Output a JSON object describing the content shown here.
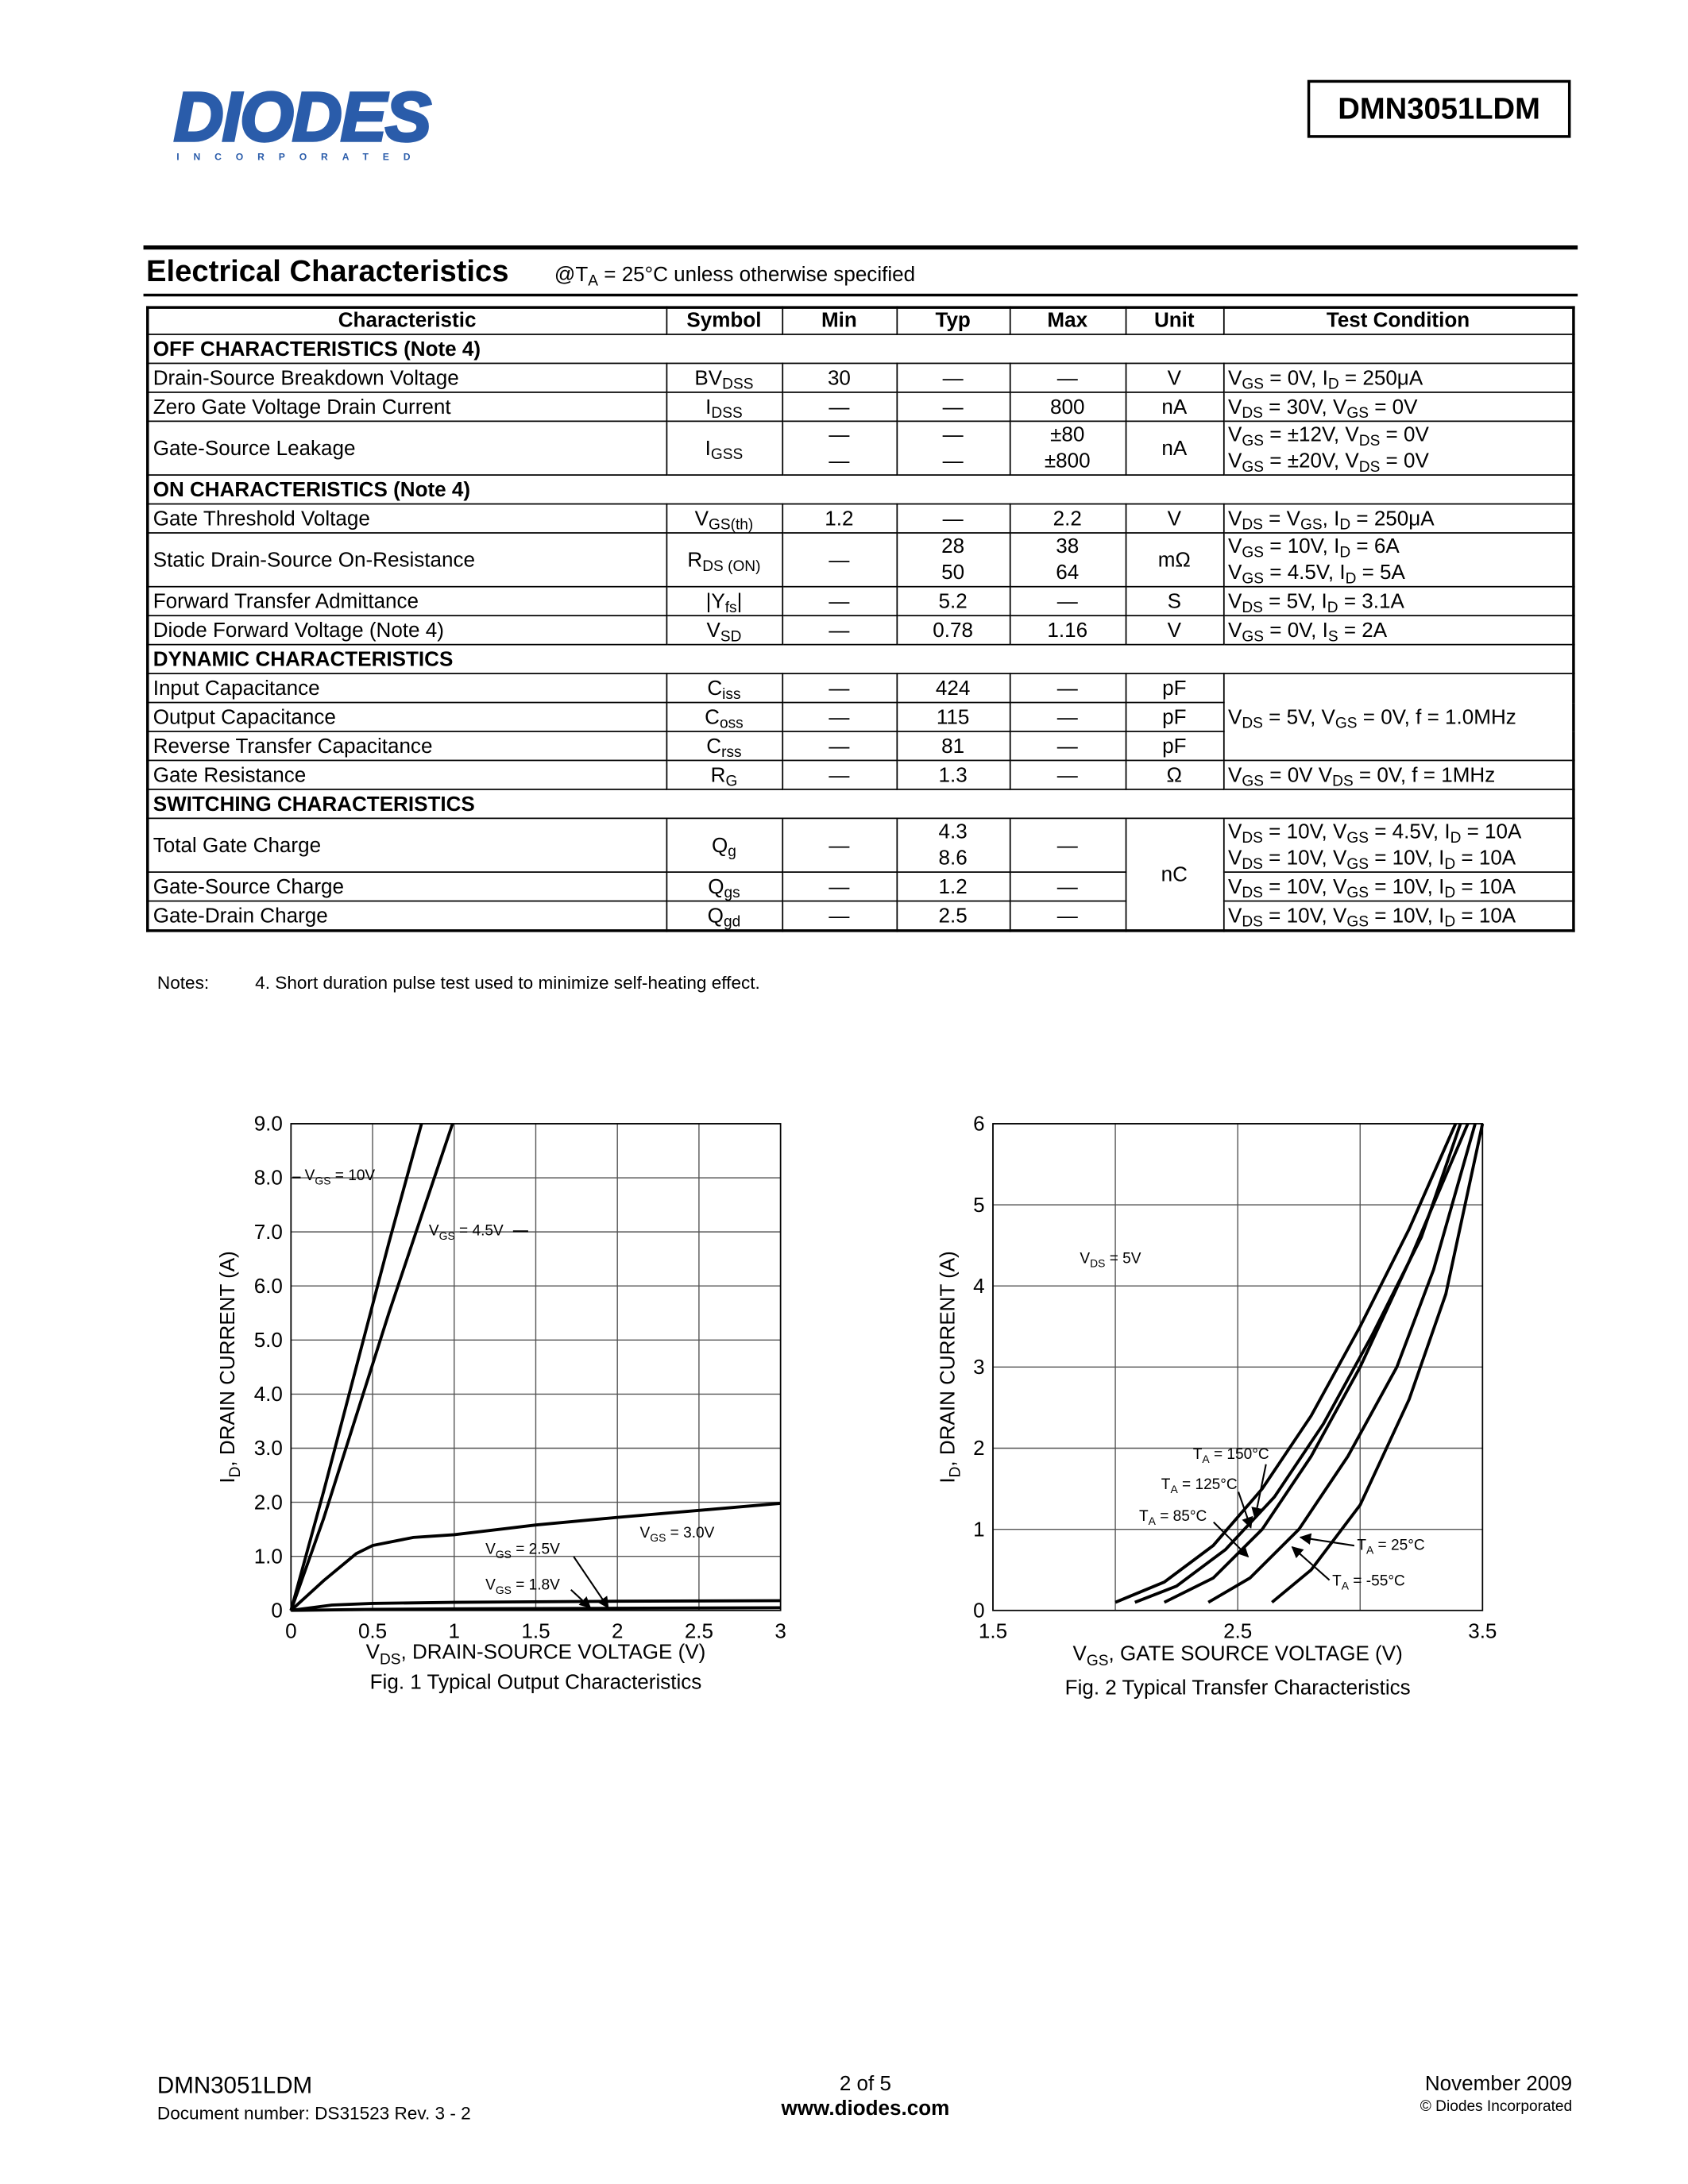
{
  "header": {
    "logo": "DIODES",
    "logo_sub": "INCORPORATED",
    "part_number": "DMN3051LDM"
  },
  "section": {
    "title": "Electrical Characteristics",
    "condition": [
      "@T",
      {
        "sub": "A"
      },
      " = 25°C unless otherwise specified"
    ]
  },
  "table": {
    "header": [
      "Characteristic",
      "Symbol",
      "Min",
      "Typ",
      "Max",
      "Unit",
      "Test Condition"
    ],
    "rows": [
      {
        "section": "OFF CHARACTERISTICS (Note 4)"
      },
      [
        "Drain-Source Breakdown Voltage",
        [
          "BV",
          {
            "sub": "DSS"
          }
        ],
        "30",
        "—",
        "—",
        "V",
        [
          "V",
          {
            "sub": "GS"
          },
          " = 0V, I",
          {
            "sub": "D"
          },
          " = 250μA"
        ]
      ],
      [
        "Zero Gate Voltage Drain Current",
        [
          "I",
          {
            "sub": "DSS"
          }
        ],
        "—",
        "—",
        "800",
        "nA",
        [
          "V",
          {
            "sub": "DS"
          },
          " = 30V, V",
          {
            "sub": "GS"
          },
          " = 0V"
        ]
      ],
      [
        "Gate-Source Leakage",
        [
          "I",
          {
            "sub": "GSS"
          }
        ],
        {
          "lines": [
            "—",
            "—"
          ]
        },
        {
          "lines": [
            "—",
            "—"
          ]
        },
        {
          "lines": [
            "±80",
            "±800"
          ]
        },
        "nA",
        {
          "lines": [
            [
              "V",
              {
                "sub": "GS"
              },
              " = ±12V, V",
              {
                "sub": "DS"
              },
              " = 0V"
            ],
            [
              "V",
              {
                "sub": "GS"
              },
              " = ±20V, V",
              {
                "sub": "DS"
              },
              " = 0V"
            ]
          ]
        }
      ],
      {
        "section": "ON CHARACTERISTICS (Note 4)"
      },
      [
        "Gate Threshold Voltage",
        [
          "V",
          {
            "sub": "GS(th)"
          }
        ],
        "1.2",
        "—",
        "2.2",
        "V",
        [
          "V",
          {
            "sub": "DS"
          },
          " = V",
          {
            "sub": "GS"
          },
          ", I",
          {
            "sub": "D"
          },
          " = 250μA"
        ]
      ],
      [
        "Static Drain-Source On-Resistance",
        [
          "R",
          {
            "sub": "DS (ON)"
          }
        ],
        "—",
        {
          "lines": [
            "28",
            "50"
          ]
        },
        {
          "lines": [
            "38",
            "64"
          ]
        },
        "mΩ",
        {
          "lines": [
            [
              "V",
              {
                "sub": "GS"
              },
              " = 10V, I",
              {
                "sub": "D"
              },
              " = 6A"
            ],
            [
              "V",
              {
                "sub": "GS"
              },
              " = 4.5V, I",
              {
                "sub": "D"
              },
              " = 5A"
            ]
          ]
        }
      ],
      [
        "Forward Transfer Admittance",
        [
          "|Y",
          {
            "sub": "fs"
          },
          "|"
        ],
        "—",
        "5.2",
        "—",
        "S",
        [
          "V",
          {
            "sub": "DS"
          },
          " = 5V, I",
          {
            "sub": "D"
          },
          " = 3.1A"
        ]
      ],
      [
        "Diode Forward Voltage (Note 4)",
        [
          "V",
          {
            "sub": "SD"
          }
        ],
        "—",
        "0.78",
        "1.16",
        "V",
        [
          "V",
          {
            "sub": "GS"
          },
          " = 0V, I",
          {
            "sub": "S"
          },
          " = 2A"
        ]
      ],
      {
        "section": "DYNAMIC CHARACTERISTICS"
      },
      [
        "Input Capacitance",
        [
          "C",
          {
            "sub": "iss"
          }
        ],
        "—",
        "424",
        "—",
        "pF",
        [
          "V",
          {
            "sub": "DS"
          },
          " = 5V, V",
          {
            "sub": "GS"
          },
          " = 0V, f = 1.0MHz"
        ]
      ],
      [
        "Output Capacitance",
        [
          "C",
          {
            "sub": "oss"
          }
        ],
        "—",
        "115",
        "—",
        "pF"
      ],
      [
        "Reverse Transfer Capacitance",
        [
          "C",
          {
            "sub": "rss"
          }
        ],
        "—",
        "81",
        "—",
        "pF"
      ],
      [
        "Gate Resistance",
        [
          "R",
          {
            "sub": "G"
          }
        ],
        "—",
        "1.3",
        "—",
        "Ω",
        [
          "V",
          {
            "sub": "GS"
          },
          " = 0V V",
          {
            "sub": "DS"
          },
          " = 0V, f = 1MHz"
        ]
      ],
      {
        "section": "SWITCHING CHARACTERISTICS"
      },
      [
        "Total Gate Charge",
        [
          "Q",
          {
            "sub": "g"
          }
        ],
        "—",
        {
          "lines": [
            "4.3",
            "8.6"
          ]
        },
        "—",
        "nC",
        {
          "lines": [
            [
              "V",
              {
                "sub": "DS"
              },
              " = 10V, V",
              {
                "sub": "GS"
              },
              " = 4.5V, I",
              {
                "sub": "D"
              },
              " = 10A"
            ],
            [
              "V",
              {
                "sub": "DS"
              },
              " = 10V, V",
              {
                "sub": "GS"
              },
              " = 10V, I",
              {
                "sub": "D"
              },
              " = 10A"
            ]
          ]
        }
      ],
      [
        "Gate-Source Charge",
        [
          "Q",
          {
            "sub": "gs"
          }
        ],
        "—",
        "1.2",
        "—",
        [
          "V",
          {
            "sub": "DS"
          },
          " = 10V, V",
          {
            "sub": "GS"
          },
          " = 10V, I",
          {
            "sub": "D"
          },
          " = 10A"
        ]
      ],
      [
        "Gate-Drain Charge",
        [
          "Q",
          {
            "sub": "gd"
          }
        ],
        "—",
        "2.5",
        "—",
        [
          "V",
          {
            "sub": "DS"
          },
          " = 10V, V",
          {
            "sub": "GS"
          },
          " = 10V, I",
          {
            "sub": "D"
          },
          " = 10A"
        ]
      ]
    ]
  },
  "notes": {
    "label": "Notes:",
    "text": "4. Short duration pulse test used to minimize self-heating effect."
  },
  "chart_data": [
    {
      "type": "line",
      "caption": "Fig. 1 Typical Output Characteristics",
      "xlabel": [
        "V",
        {
          "sub": "DS"
        },
        ", DRAIN-SOURCE VOLTAGE (V)"
      ],
      "ylabel": [
        "I",
        {
          "sub": "D"
        },
        ", DRAIN CURRENT (A)"
      ],
      "xlim": [
        0,
        3
      ],
      "ylim": [
        0,
        9
      ],
      "xticks": [
        0,
        0.5,
        1,
        1.5,
        2,
        2.5,
        3
      ],
      "yticks": [
        0,
        {
          "value": 1,
          "label": "1.0"
        },
        {
          "value": 2,
          "label": "2.0"
        },
        {
          "value": 3,
          "label": "3.0"
        },
        {
          "value": 4,
          "label": "4.0"
        },
        {
          "value": 5,
          "label": "5.0"
        },
        {
          "value": 6,
          "label": "6.0"
        },
        {
          "value": 7,
          "label": "7.0"
        },
        {
          "value": 8,
          "label": "8.0"
        },
        {
          "value": 9,
          "label": "9.0"
        }
      ],
      "grid": true,
      "series": [
        {
          "name": [
            "V",
            {
              "sub": "GS"
            },
            " = 10V"
          ],
          "color": "#000000",
          "x": [
            0,
            0.2,
            0.4,
            0.6,
            0.8
          ],
          "values": [
            0,
            2.2,
            4.5,
            6.8,
            9
          ]
        },
        {
          "name": [
            "V",
            {
              "sub": "GS"
            },
            " = 4.5V"
          ],
          "color": "#000000",
          "x": [
            0,
            0.2,
            0.4,
            0.6,
            0.8,
            0.99
          ],
          "values": [
            0,
            1.7,
            3.6,
            5.5,
            7.3,
            9
          ]
        },
        {
          "name": [
            "V",
            {
              "sub": "GS"
            },
            " = 3.0V"
          ],
          "color": "#000000",
          "x": [
            0,
            0.2,
            0.4,
            0.5,
            0.75,
            1,
            1.5,
            2,
            2.5,
            3
          ],
          "values": [
            0,
            0.55,
            1.05,
            1.2,
            1.35,
            1.4,
            1.58,
            1.72,
            1.85,
            1.98
          ]
        },
        {
          "name": [
            "V",
            {
              "sub": "GS"
            },
            " = 2.5V"
          ],
          "color": "#000000",
          "x": [
            0,
            0.25,
            0.5,
            1,
            2,
            3
          ],
          "values": [
            0,
            0.1,
            0.13,
            0.15,
            0.17,
            0.18
          ]
        },
        {
          "name": [
            "V",
            {
              "sub": "GS"
            },
            " = 1.8V"
          ],
          "color": "#000000",
          "x": [
            0,
            0.5,
            1,
            2,
            3
          ],
          "values": [
            0,
            0.02,
            0.03,
            0.04,
            0.05
          ]
        }
      ]
    },
    {
      "type": "line",
      "caption": "Fig. 2 Typical Transfer Characteristics",
      "xlabel": [
        "V",
        {
          "sub": "GS"
        },
        ", GATE SOURCE VOLTAGE (V)"
      ],
      "ylabel": [
        "I",
        {
          "sub": "D"
        },
        ", DRAIN CURRENT (A)"
      ],
      "annotation": [
        "V",
        {
          "sub": "DS"
        },
        " = 5V"
      ],
      "xlim": [
        1.5,
        3.5
      ],
      "ylim": [
        0,
        6
      ],
      "xticks": [
        1.5,
        {
          "value": 2,
          "label": null
        },
        2.5,
        {
          "value": 3,
          "label": null
        },
        3.5
      ],
      "yticks": [
        0,
        1,
        2,
        3,
        4,
        5,
        6
      ],
      "grid": true,
      "series": [
        {
          "name": [
            "T",
            {
              "sub": "A"
            },
            " = 150°C"
          ],
          "color": "#000000",
          "x": [
            2.0,
            2.2,
            2.4,
            2.6,
            2.8,
            3.0,
            3.2,
            3.39
          ],
          "values": [
            0.1,
            0.35,
            0.8,
            1.5,
            2.4,
            3.5,
            4.7,
            6
          ]
        },
        {
          "name": [
            "T",
            {
              "sub": "A"
            },
            " = 125°C"
          ],
          "color": "#000000",
          "x": [
            2.08,
            2.25,
            2.45,
            2.65,
            2.85,
            3.05,
            3.25,
            3.41
          ],
          "values": [
            0.1,
            0.3,
            0.75,
            1.4,
            2.3,
            3.4,
            4.6,
            6
          ]
        },
        {
          "name": [
            "T",
            {
              "sub": "A"
            },
            " = 85°C"
          ],
          "color": "#000000",
          "x": [
            2.2,
            2.4,
            2.6,
            2.8,
            3.0,
            3.2,
            3.44
          ],
          "values": [
            0.1,
            0.4,
            1.0,
            1.9,
            3.0,
            4.3,
            6
          ]
        },
        {
          "name": [
            "T",
            {
              "sub": "A"
            },
            " = 25°C"
          ],
          "color": "#000000",
          "x": [
            2.38,
            2.55,
            2.75,
            2.95,
            3.15,
            3.3,
            3.47
          ],
          "values": [
            0.1,
            0.4,
            1.0,
            1.9,
            3.0,
            4.2,
            6
          ]
        },
        {
          "name": [
            "T",
            {
              "sub": "A"
            },
            " = -55°C"
          ],
          "color": "#000000",
          "x": [
            2.64,
            2.8,
            3.0,
            3.2,
            3.35,
            3.5
          ],
          "values": [
            0.1,
            0.5,
            1.3,
            2.6,
            3.9,
            6
          ]
        }
      ]
    }
  ],
  "footer": {
    "part": "DMN3051LDM",
    "document": "Document number: DS31523 Rev. 3 - 2",
    "page": "2 of 5",
    "website": "www.diodes.com",
    "date": "November 2009",
    "copyright": "© Diodes Incorporated"
  }
}
